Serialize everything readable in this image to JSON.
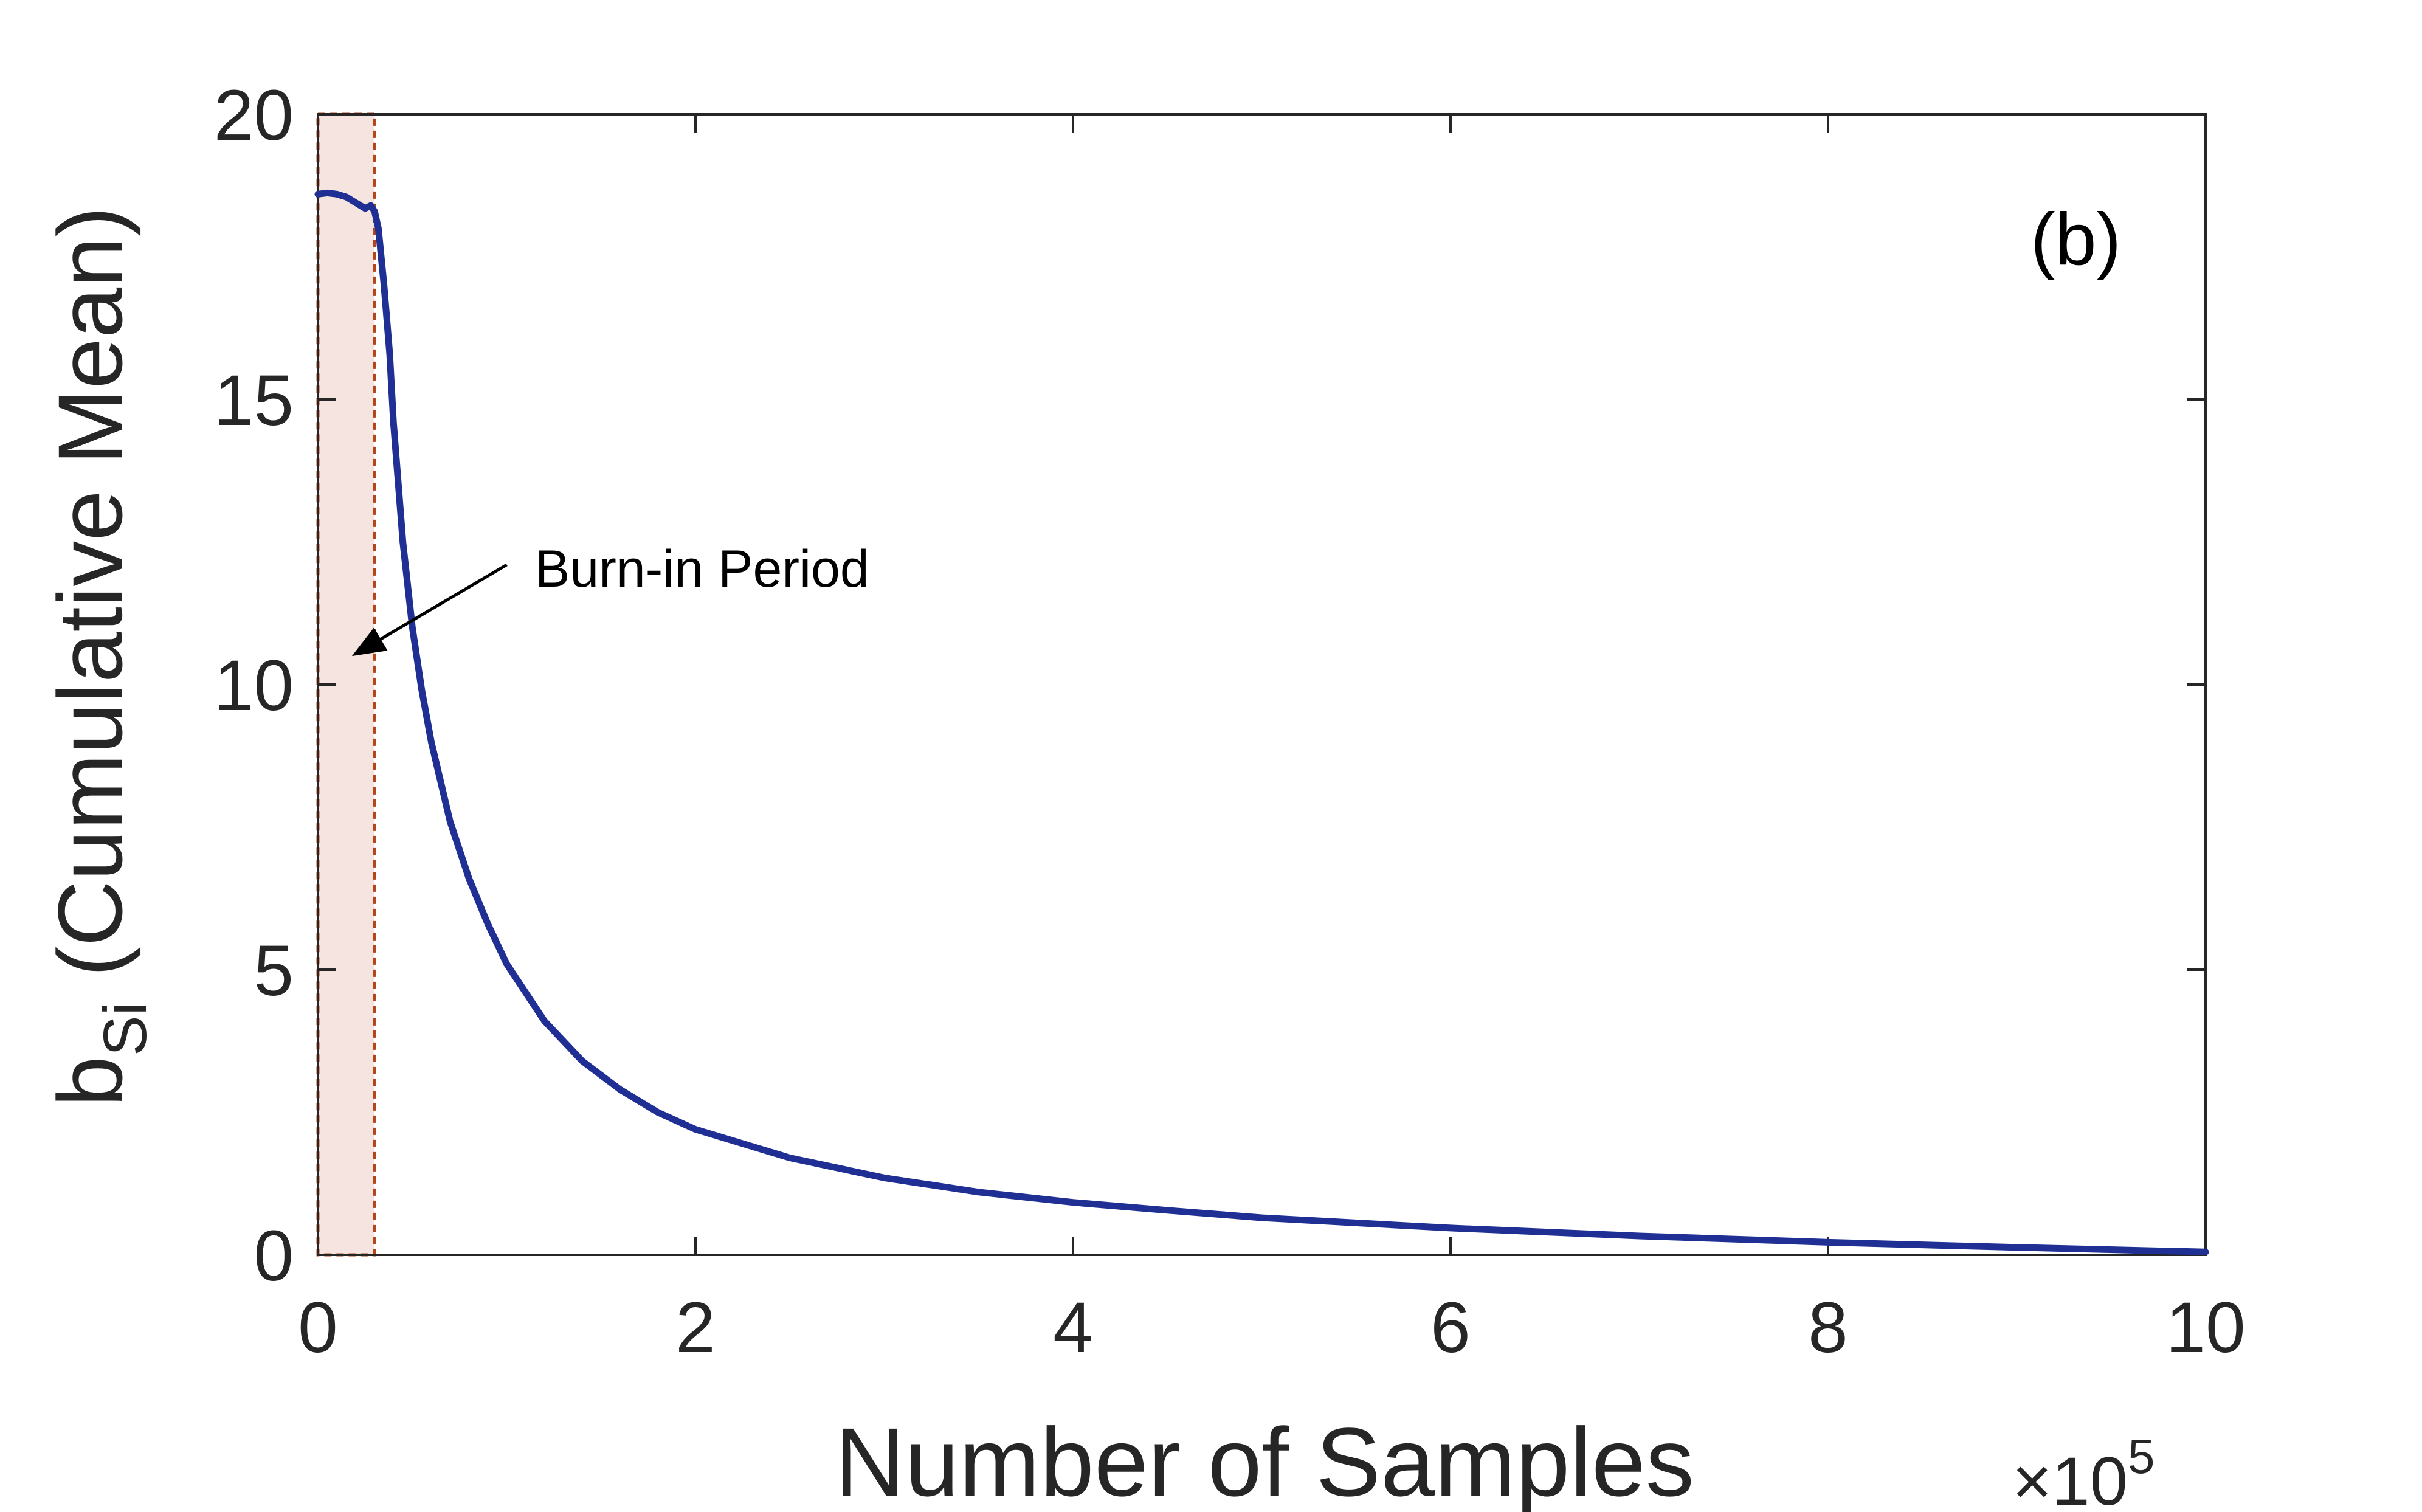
{
  "panel_label": "(b)",
  "colors": {
    "line": "#1f2f94",
    "burn_in_fill": "#f5e4df",
    "burn_in_edge": "#b5451a",
    "axes": "#262626",
    "text": "#262626"
  },
  "chart_data": {
    "type": "line",
    "xlabel": "Number of Samples",
    "x_multiplier": "×10",
    "x_multiplier_exponent": "5",
    "ylabel_main": "b",
    "ylabel_subscript": "Si",
    "ylabel_rest": " (Cumulative Mean)",
    "xlim": [
      0,
      10
    ],
    "ylim": [
      0,
      20
    ],
    "xticks": [
      0,
      2,
      4,
      6,
      8,
      10
    ],
    "xtick_labels": [
      "0",
      "2",
      "4",
      "6",
      "8",
      "10"
    ],
    "yticks": [
      0,
      5,
      10,
      15,
      20
    ],
    "ytick_labels": [
      "0",
      "5",
      "10",
      "15",
      "20"
    ],
    "grid": false,
    "legend": "none",
    "burn_in": {
      "x_start": 0,
      "x_end": 0.3,
      "label": "Burn-in Period"
    },
    "annotation_arrow": {
      "from": [
        1.0,
        12.1
      ],
      "to": [
        0.18,
        10.5
      ]
    },
    "series": [
      {
        "x": [
          0,
          0.05,
          0.1,
          0.15,
          0.2,
          0.25,
          0.28,
          0.3,
          0.32,
          0.35,
          0.38,
          0.4,
          0.45,
          0.5,
          0.55,
          0.6,
          0.7,
          0.8,
          0.9,
          1.0,
          1.2,
          1.4,
          1.6,
          1.8,
          2.0,
          2.5,
          3.0,
          3.5,
          4.0,
          4.5,
          5.0,
          6.0,
          7.0,
          8.0,
          9.0,
          10.0
        ],
        "y": [
          18.6,
          18.62,
          18.6,
          18.55,
          18.45,
          18.35,
          18.4,
          18.3,
          18.0,
          17.0,
          15.8,
          14.6,
          12.5,
          11.0,
          9.9,
          9.0,
          7.6,
          6.6,
          5.8,
          5.1,
          4.1,
          3.4,
          2.9,
          2.5,
          2.2,
          1.7,
          1.35,
          1.1,
          0.92,
          0.78,
          0.65,
          0.47,
          0.33,
          0.22,
          0.13,
          0.05
        ]
      }
    ]
  }
}
